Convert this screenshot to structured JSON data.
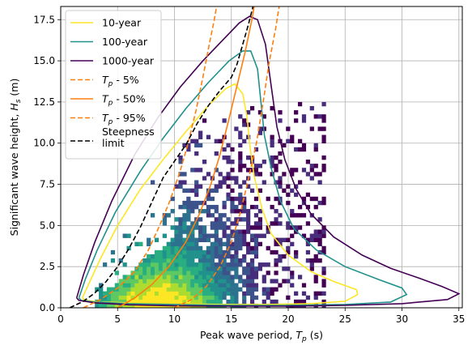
{
  "chart_data": {
    "type": "line",
    "xlabel": "Peak wave period, T_p (s)",
    "ylabel": "Significant wave height, H_s (m)",
    "xlim": [
      0,
      35.3
    ],
    "ylim": [
      0,
      18.3
    ],
    "xticks": [
      0,
      5,
      10,
      15,
      20,
      25,
      30,
      35
    ],
    "yticks": [
      0.0,
      2.5,
      5.0,
      7.5,
      10.0,
      12.5,
      15.0,
      17.5
    ],
    "xtick_labels": [
      "0",
      "5",
      "10",
      "15",
      "20",
      "25",
      "30",
      "35"
    ],
    "ytick_labels": [
      "0.0",
      "2.5",
      "5.0",
      "7.5",
      "10.0",
      "12.5",
      "15.0",
      "17.5"
    ],
    "grid": true,
    "legend_position": "top-left",
    "background_histogram": {
      "type": "heatmap",
      "colormap": "viridis",
      "description_points": [
        [
          7,
          1.5
        ],
        [
          8,
          2.0
        ],
        [
          9,
          2.5
        ],
        [
          10,
          2.0
        ],
        [
          11,
          3.0
        ],
        [
          12,
          4.0
        ],
        [
          13,
          5.0
        ]
      ]
    },
    "series": [
      {
        "name": "10-year",
        "color": "#fde725",
        "style": "solid",
        "points": [
          [
            1.9,
            0.6
          ],
          [
            2.5,
            1.5
          ],
          [
            3.5,
            3.0
          ],
          [
            5.0,
            5.0
          ],
          [
            7.0,
            7.2
          ],
          [
            9.0,
            9.0
          ],
          [
            11.0,
            10.7
          ],
          [
            13.0,
            12.3
          ],
          [
            14.5,
            13.3
          ],
          [
            15.3,
            13.6
          ],
          [
            16.0,
            13.0
          ],
          [
            16.4,
            11.5
          ],
          [
            16.6,
            10.0
          ],
          [
            17.0,
            8.0
          ],
          [
            17.7,
            6.0
          ],
          [
            18.5,
            4.5
          ],
          [
            20.0,
            3.2
          ],
          [
            22.0,
            2.2
          ],
          [
            24.0,
            1.6
          ],
          [
            26.0,
            1.1
          ],
          [
            26.1,
            0.8
          ],
          [
            25.0,
            0.4
          ],
          [
            22.0,
            0.25
          ],
          [
            18.0,
            0.2
          ],
          [
            14.0,
            0.2
          ],
          [
            10.0,
            0.25
          ],
          [
            6.0,
            0.3
          ],
          [
            3.5,
            0.35
          ],
          [
            2.2,
            0.45
          ],
          [
            1.9,
            0.6
          ]
        ]
      },
      {
        "name": "100-year",
        "color": "#21918c",
        "style": "solid",
        "points": [
          [
            1.6,
            0.6
          ],
          [
            2.2,
            1.8
          ],
          [
            3.2,
            3.5
          ],
          [
            4.8,
            5.8
          ],
          [
            7.0,
            8.3
          ],
          [
            9.0,
            10.3
          ],
          [
            11.0,
            12.1
          ],
          [
            13.0,
            13.7
          ],
          [
            14.8,
            15.0
          ],
          [
            16.0,
            15.6
          ],
          [
            16.7,
            15.6
          ],
          [
            17.3,
            14.5
          ],
          [
            17.6,
            12.5
          ],
          [
            17.9,
            10.5
          ],
          [
            18.5,
            8.5
          ],
          [
            19.3,
            6.5
          ],
          [
            20.5,
            4.8
          ],
          [
            22.5,
            3.5
          ],
          [
            25.0,
            2.5
          ],
          [
            28.0,
            1.7
          ],
          [
            30.0,
            1.2
          ],
          [
            30.4,
            0.8
          ],
          [
            29.0,
            0.35
          ],
          [
            25.0,
            0.2
          ],
          [
            20.0,
            0.15
          ],
          [
            15.0,
            0.15
          ],
          [
            10.0,
            0.2
          ],
          [
            6.0,
            0.25
          ],
          [
            3.0,
            0.35
          ],
          [
            1.8,
            0.45
          ],
          [
            1.6,
            0.6
          ]
        ]
      },
      {
        "name": "1000-year",
        "color": "#440154",
        "style": "solid",
        "points": [
          [
            1.4,
            0.6
          ],
          [
            2.0,
            2.0
          ],
          [
            3.0,
            4.0
          ],
          [
            4.5,
            6.5
          ],
          [
            6.5,
            9.3
          ],
          [
            8.5,
            11.5
          ],
          [
            10.5,
            13.4
          ],
          [
            12.5,
            15.0
          ],
          [
            14.3,
            16.3
          ],
          [
            15.7,
            17.3
          ],
          [
            16.6,
            17.7
          ],
          [
            17.3,
            17.5
          ],
          [
            18.0,
            16.0
          ],
          [
            18.5,
            13.5
          ],
          [
            19.0,
            11.0
          ],
          [
            19.7,
            9.0
          ],
          [
            20.7,
            7.2
          ],
          [
            22.0,
            5.7
          ],
          [
            24.0,
            4.3
          ],
          [
            26.5,
            3.2
          ],
          [
            29.0,
            2.4
          ],
          [
            31.5,
            1.8
          ],
          [
            33.5,
            1.3
          ],
          [
            35.0,
            0.85
          ],
          [
            34.0,
            0.5
          ],
          [
            30.0,
            0.25
          ],
          [
            25.0,
            0.15
          ],
          [
            20.0,
            0.1
          ],
          [
            15.0,
            0.1
          ],
          [
            10.0,
            0.12
          ],
          [
            6.0,
            0.18
          ],
          [
            3.0,
            0.3
          ],
          [
            1.6,
            0.45
          ],
          [
            1.4,
            0.6
          ]
        ]
      },
      {
        "name": "T_p - 5%",
        "color": "#ff7f0e",
        "style": "dashed",
        "points": [
          [
            2.0,
            0.0
          ],
          [
            3.5,
            0.5
          ],
          [
            5.0,
            1.2
          ],
          [
            6.5,
            2.2
          ],
          [
            7.7,
            3.5
          ],
          [
            8.7,
            5.0
          ],
          [
            9.6,
            6.5
          ],
          [
            10.5,
            8.3
          ],
          [
            11.2,
            10.0
          ],
          [
            11.9,
            12.0
          ],
          [
            12.5,
            14.0
          ],
          [
            13.0,
            15.8
          ],
          [
            13.5,
            17.5
          ],
          [
            13.7,
            18.3
          ]
        ]
      },
      {
        "name": "T_p - 50%",
        "color": "#ff7f0e",
        "style": "solid",
        "points": [
          [
            5.0,
            0.0
          ],
          [
            6.5,
            0.6
          ],
          [
            8.0,
            1.4
          ],
          [
            9.5,
            2.5
          ],
          [
            11.0,
            4.0
          ],
          [
            12.2,
            5.7
          ],
          [
            13.2,
            7.5
          ],
          [
            14.0,
            9.3
          ],
          [
            14.8,
            11.5
          ],
          [
            15.5,
            13.5
          ],
          [
            16.2,
            15.5
          ],
          [
            16.8,
            17.5
          ],
          [
            17.0,
            18.3
          ]
        ]
      },
      {
        "name": "T_p - 95%",
        "color": "#ff7f0e",
        "style": "dashed",
        "points": [
          [
            10.0,
            0.0
          ],
          [
            11.5,
            0.5
          ],
          [
            12.8,
            1.3
          ],
          [
            14.0,
            2.5
          ],
          [
            15.0,
            4.0
          ],
          [
            15.8,
            5.8
          ],
          [
            16.5,
            7.8
          ],
          [
            17.2,
            10.0
          ],
          [
            17.8,
            12.5
          ],
          [
            18.3,
            14.8
          ],
          [
            18.9,
            17.0
          ],
          [
            19.2,
            18.3
          ]
        ]
      },
      {
        "name": "Steepness\nlimit",
        "color": "#000000",
        "style": "dashed",
        "points": [
          [
            0.8,
            0.0
          ],
          [
            2.0,
            0.4
          ],
          [
            3.0,
            0.9
          ],
          [
            4.0,
            1.6
          ],
          [
            5.0,
            2.5
          ],
          [
            6.0,
            3.6
          ],
          [
            7.0,
            4.9
          ],
          [
            8.0,
            6.4
          ],
          [
            9.0,
            7.9
          ],
          [
            10.0,
            8.9
          ],
          [
            11.0,
            9.9
          ],
          [
            12.0,
            11.2
          ],
          [
            13.0,
            12.3
          ],
          [
            14.0,
            13.2
          ],
          [
            15.0,
            14.0
          ],
          [
            15.5,
            14.8
          ],
          [
            16.0,
            16.0
          ],
          [
            16.5,
            17.2
          ],
          [
            16.9,
            18.3
          ]
        ]
      }
    ]
  }
}
